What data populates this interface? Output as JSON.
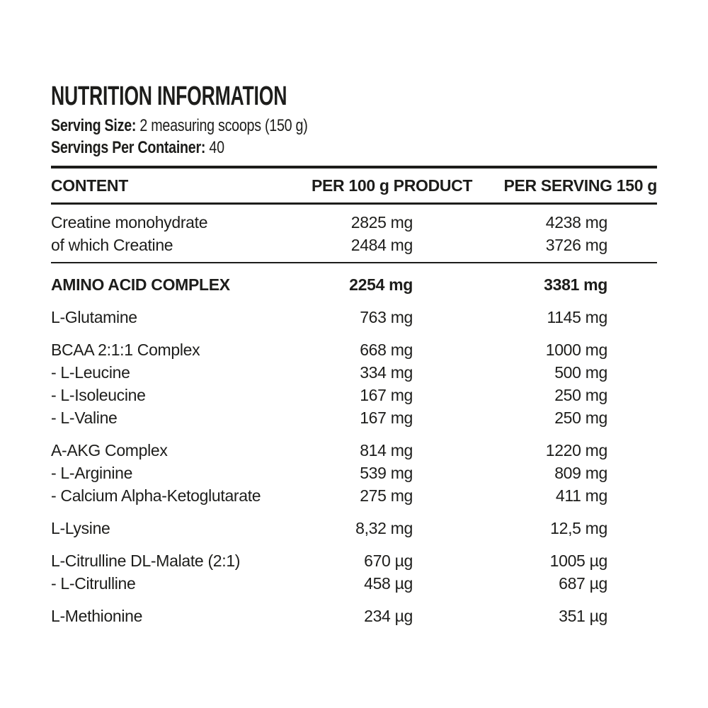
{
  "colors": {
    "text": "#1d1d1b",
    "background": "#ffffff"
  },
  "header": {
    "title": "NUTRITION INFORMATION",
    "serving_size_label": "Serving Size:",
    "serving_size_value": "2 measuring scoops (150 g)",
    "servings_per_container_label": "Servings Per Container:",
    "servings_per_container_value": "40"
  },
  "table": {
    "columns": [
      "CONTENT",
      "PER 100 g PRODUCT",
      "PER SERVING 150 g"
    ],
    "groups": [
      {
        "bold": false,
        "divider_after": true,
        "rows": [
          {
            "name": "Creatine monohydrate",
            "per_100g": "2825 mg",
            "per_serving": "4238 mg"
          },
          {
            "name": "of which Creatine",
            "per_100g": "2484 mg",
            "per_serving": "3726 mg"
          }
        ]
      },
      {
        "bold": true,
        "divider_after": false,
        "rows": [
          {
            "name": "AMINO ACID COMPLEX",
            "per_100g": "2254 mg",
            "per_serving": "3381 mg"
          }
        ]
      },
      {
        "bold": false,
        "divider_after": false,
        "rows": [
          {
            "name": "L-Glutamine",
            "per_100g": "763 mg",
            "per_serving": "1145 mg"
          }
        ]
      },
      {
        "bold": false,
        "divider_after": false,
        "rows": [
          {
            "name": "BCAA 2:1:1 Complex",
            "per_100g": "668 mg",
            "per_serving": "1000 mg"
          },
          {
            "name": "- L-Leucine",
            "per_100g": "334 mg",
            "per_serving": "500 mg"
          },
          {
            "name": "- L-Isoleucine",
            "per_100g": "167 mg",
            "per_serving": "250 mg"
          },
          {
            "name": "- L-Valine",
            "per_100g": "167 mg",
            "per_serving": "250 mg"
          }
        ]
      },
      {
        "bold": false,
        "divider_after": false,
        "rows": [
          {
            "name": "A-AKG Complex",
            "per_100g": "814 mg",
            "per_serving": "1220 mg"
          },
          {
            "name": "- L-Arginine",
            "per_100g": "539 mg",
            "per_serving": "809 mg"
          },
          {
            "name": "- Calcium Alpha-Ketoglutarate",
            "per_100g": "275 mg",
            "per_serving": "411 mg"
          }
        ]
      },
      {
        "bold": false,
        "divider_after": false,
        "rows": [
          {
            "name": "L-Lysine",
            "per_100g": "8,32 mg",
            "per_serving": "12,5 mg"
          }
        ]
      },
      {
        "bold": false,
        "divider_after": false,
        "rows": [
          {
            "name": "L-Citrulline DL-Malate (2:1)",
            "per_100g": "670 µg",
            "per_serving": "1005 µg"
          },
          {
            "name": "- L-Citrulline",
            "per_100g": "458 µg",
            "per_serving": "687 µg"
          }
        ]
      },
      {
        "bold": false,
        "divider_after": false,
        "rows": [
          {
            "name": "L-Methionine",
            "per_100g": "234 µg",
            "per_serving": "351 µg"
          }
        ]
      }
    ]
  }
}
